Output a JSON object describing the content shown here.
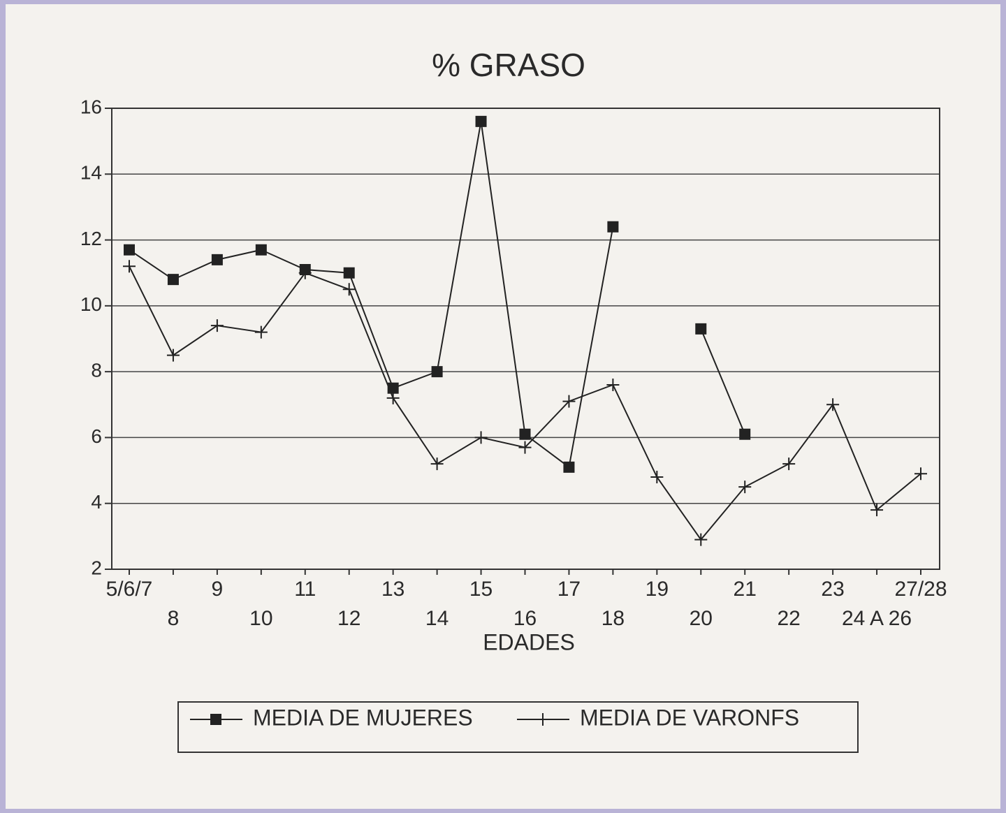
{
  "chart_data": {
    "type": "line",
    "title": "% GRASO",
    "x_label": "EDADES",
    "categories": [
      "5/6/7",
      "8",
      "9",
      "10",
      "11",
      "12",
      "13",
      "14",
      "15",
      "16",
      "17",
      "18",
      "19",
      "20",
      "21",
      "22",
      "23",
      "24 A 26",
      "27/28"
    ],
    "series": [
      {
        "name": "MEDIA DE MUJERES",
        "color": "#222222",
        "marker": "square",
        "values": [
          11.7,
          10.8,
          11.4,
          11.7,
          11.1,
          11.0,
          7.5,
          8.0,
          15.6,
          6.1,
          5.1,
          12.4,
          null,
          9.3,
          6.1,
          null,
          null,
          null,
          null
        ]
      },
      {
        "name": "MEDIA DE VARONFS",
        "color": "#222222",
        "marker": "plus",
        "values": [
          11.2,
          8.5,
          9.4,
          9.2,
          11.0,
          10.5,
          7.2,
          5.2,
          6.0,
          5.7,
          7.1,
          7.6,
          4.8,
          2.9,
          4.5,
          5.2,
          7.0,
          3.8,
          4.9
        ]
      }
    ],
    "ylim": [
      2,
      16
    ],
    "yticks": [
      2,
      4,
      6,
      8,
      10,
      12,
      14,
      16
    ],
    "grid": true,
    "legend": "bottom"
  }
}
